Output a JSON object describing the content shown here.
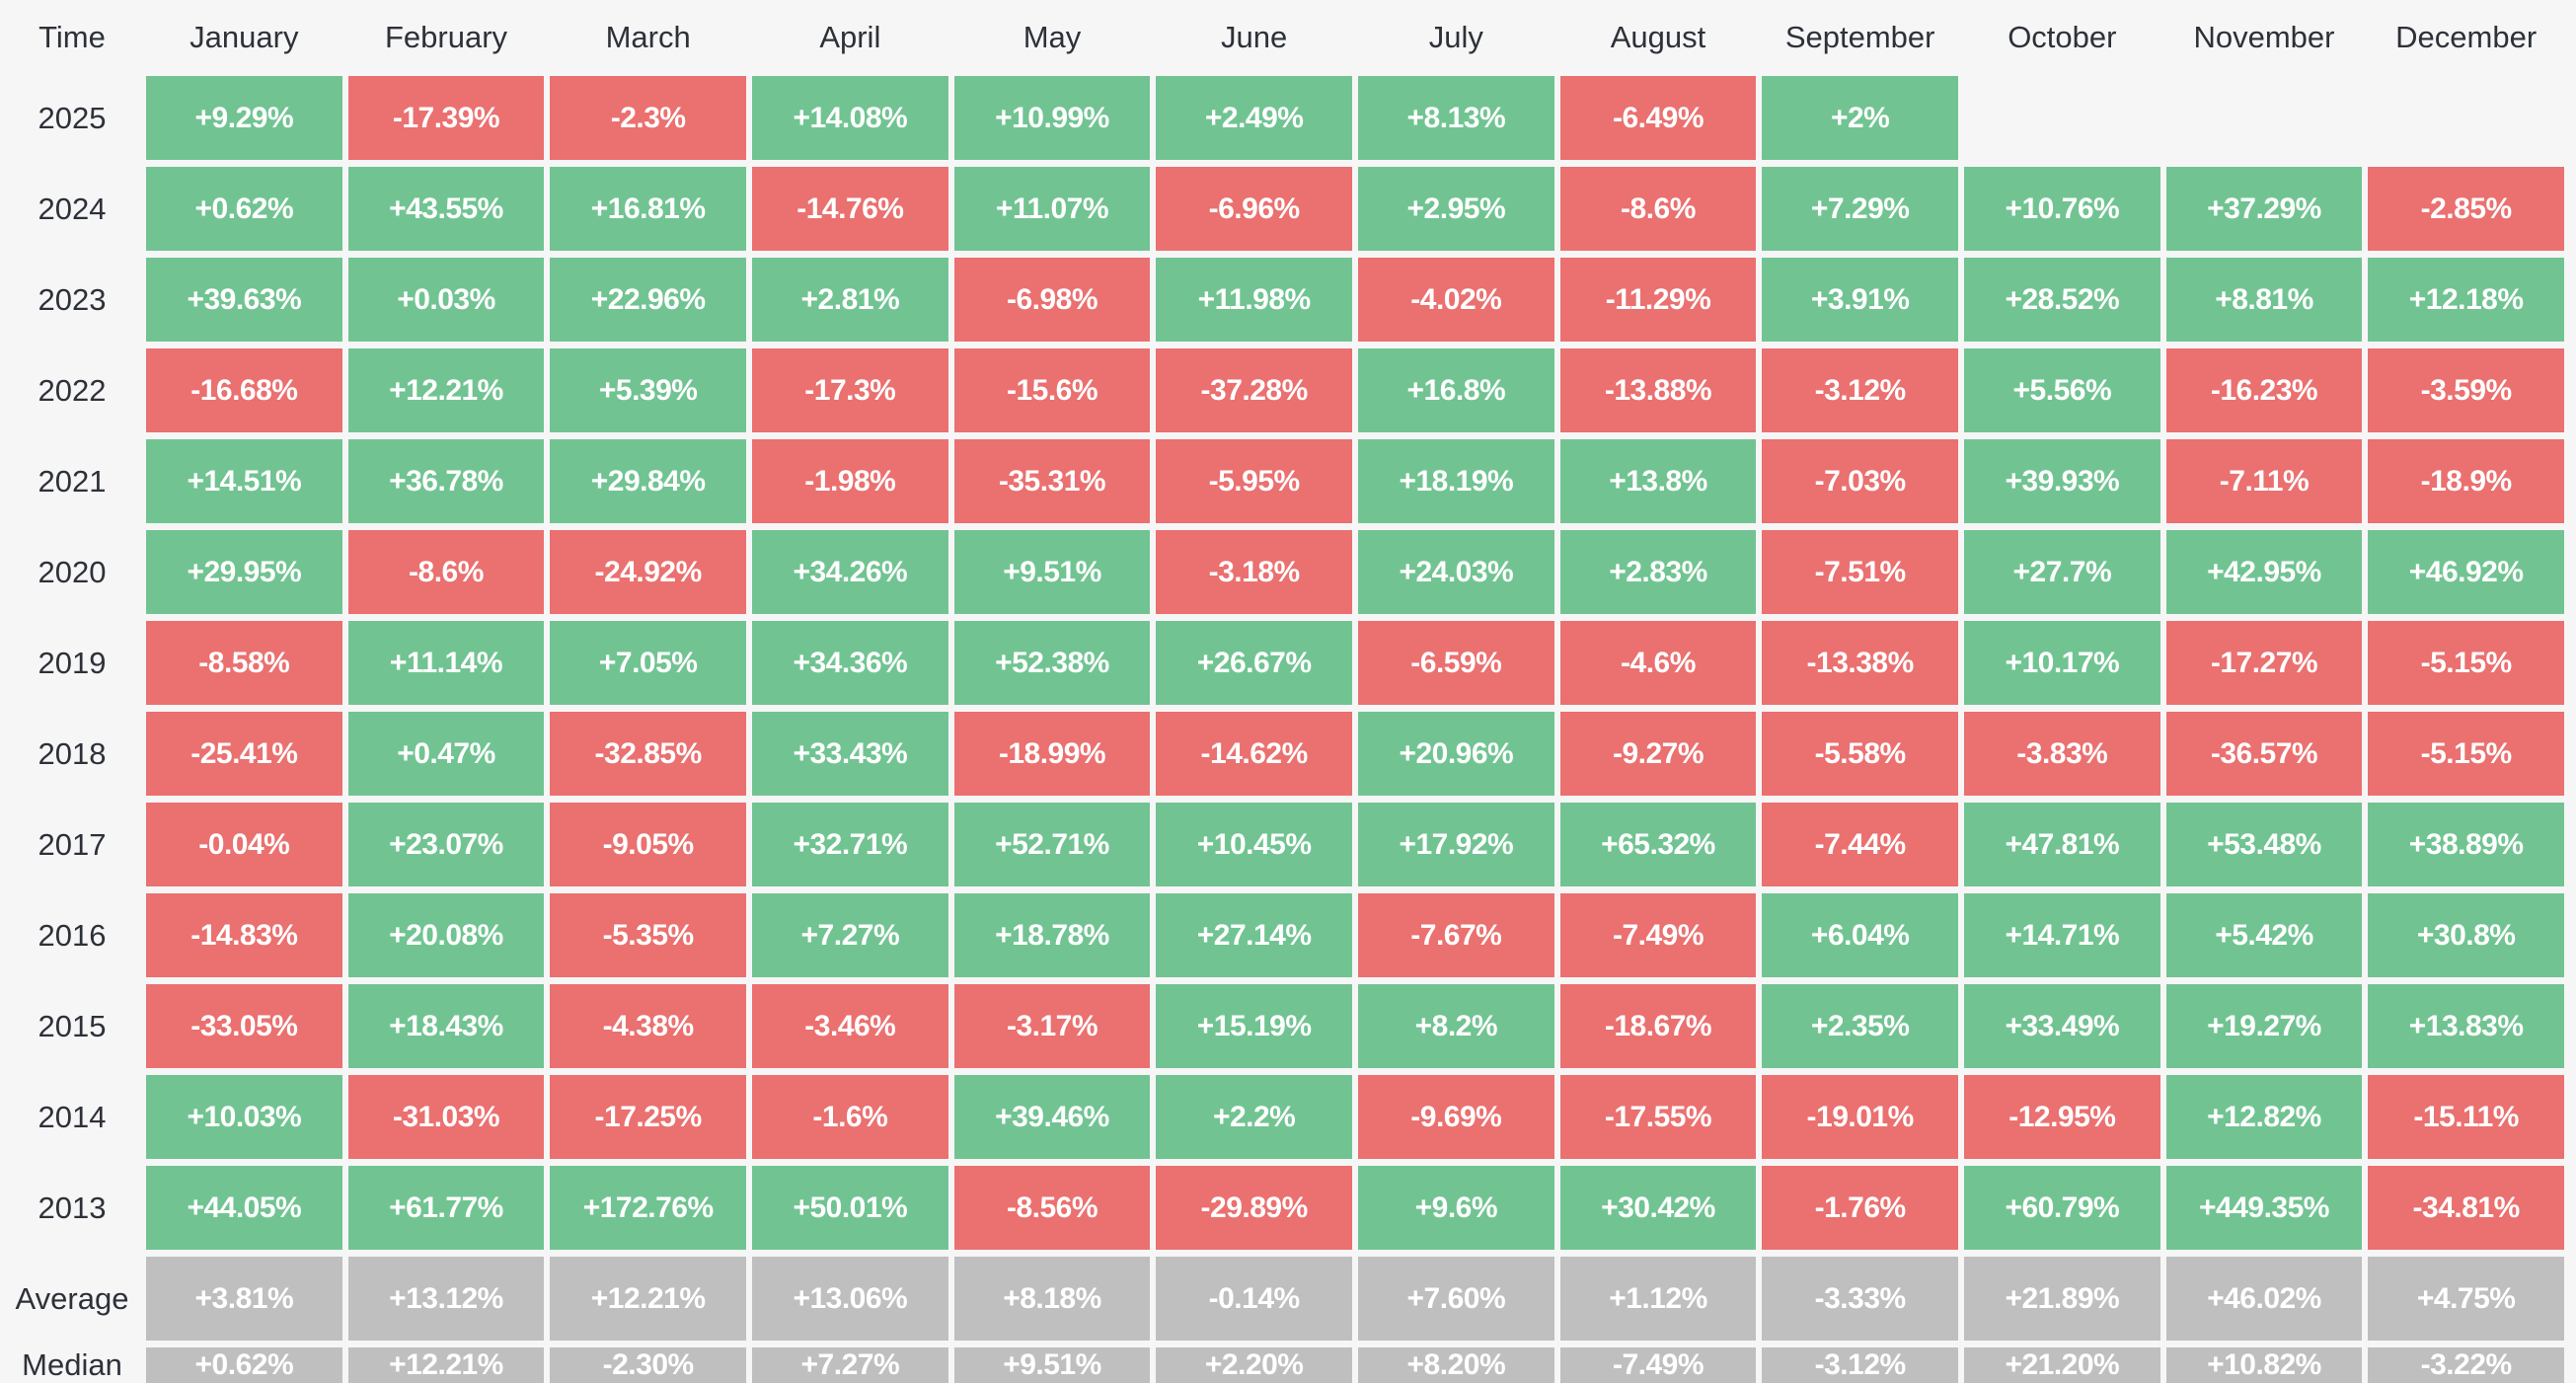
{
  "chart_data": {
    "type": "heatmap",
    "title": "Monthly returns (%) by year",
    "legend_position": "none",
    "columns": [
      "Time",
      "January",
      "February",
      "March",
      "April",
      "May",
      "June",
      "July",
      "August",
      "September",
      "October",
      "November",
      "December"
    ],
    "rows": [
      {
        "label": "2025",
        "kind": "year",
        "values": [
          "+9.29%",
          "-17.39%",
          "-2.3%",
          "+14.08%",
          "+10.99%",
          "+2.49%",
          "+8.13%",
          "-6.49%",
          "+2%",
          "",
          "",
          ""
        ]
      },
      {
        "label": "2024",
        "kind": "year",
        "values": [
          "+0.62%",
          "+43.55%",
          "+16.81%",
          "-14.76%",
          "+11.07%",
          "-6.96%",
          "+2.95%",
          "-8.6%",
          "+7.29%",
          "+10.76%",
          "+37.29%",
          "-2.85%"
        ]
      },
      {
        "label": "2023",
        "kind": "year",
        "values": [
          "+39.63%",
          "+0.03%",
          "+22.96%",
          "+2.81%",
          "-6.98%",
          "+11.98%",
          "-4.02%",
          "-11.29%",
          "+3.91%",
          "+28.52%",
          "+8.81%",
          "+12.18%"
        ]
      },
      {
        "label": "2022",
        "kind": "year",
        "values": [
          "-16.68%",
          "+12.21%",
          "+5.39%",
          "-17.3%",
          "-15.6%",
          "-37.28%",
          "+16.8%",
          "-13.88%",
          "-3.12%",
          "+5.56%",
          "-16.23%",
          "-3.59%"
        ]
      },
      {
        "label": "2021",
        "kind": "year",
        "values": [
          "+14.51%",
          "+36.78%",
          "+29.84%",
          "-1.98%",
          "-35.31%",
          "-5.95%",
          "+18.19%",
          "+13.8%",
          "-7.03%",
          "+39.93%",
          "-7.11%",
          "-18.9%"
        ]
      },
      {
        "label": "2020",
        "kind": "year",
        "values": [
          "+29.95%",
          "-8.6%",
          "-24.92%",
          "+34.26%",
          "+9.51%",
          "-3.18%",
          "+24.03%",
          "+2.83%",
          "-7.51%",
          "+27.7%",
          "+42.95%",
          "+46.92%"
        ]
      },
      {
        "label": "2019",
        "kind": "year",
        "values": [
          "-8.58%",
          "+11.14%",
          "+7.05%",
          "+34.36%",
          "+52.38%",
          "+26.67%",
          "-6.59%",
          "-4.6%",
          "-13.38%",
          "+10.17%",
          "-17.27%",
          "-5.15%"
        ]
      },
      {
        "label": "2018",
        "kind": "year",
        "values": [
          "-25.41%",
          "+0.47%",
          "-32.85%",
          "+33.43%",
          "-18.99%",
          "-14.62%",
          "+20.96%",
          "-9.27%",
          "-5.58%",
          "-3.83%",
          "-36.57%",
          "-5.15%"
        ]
      },
      {
        "label": "2017",
        "kind": "year",
        "values": [
          "-0.04%",
          "+23.07%",
          "-9.05%",
          "+32.71%",
          "+52.71%",
          "+10.45%",
          "+17.92%",
          "+65.32%",
          "-7.44%",
          "+47.81%",
          "+53.48%",
          "+38.89%"
        ]
      },
      {
        "label": "2016",
        "kind": "year",
        "values": [
          "-14.83%",
          "+20.08%",
          "-5.35%",
          "+7.27%",
          "+18.78%",
          "+27.14%",
          "-7.67%",
          "-7.49%",
          "+6.04%",
          "+14.71%",
          "+5.42%",
          "+30.8%"
        ]
      },
      {
        "label": "2015",
        "kind": "year",
        "values": [
          "-33.05%",
          "+18.43%",
          "-4.38%",
          "-3.46%",
          "-3.17%",
          "+15.19%",
          "+8.2%",
          "-18.67%",
          "+2.35%",
          "+33.49%",
          "+19.27%",
          "+13.83%"
        ]
      },
      {
        "label": "2014",
        "kind": "year",
        "values": [
          "+10.03%",
          "-31.03%",
          "-17.25%",
          "-1.6%",
          "+39.46%",
          "+2.2%",
          "-9.69%",
          "-17.55%",
          "-19.01%",
          "-12.95%",
          "+12.82%",
          "-15.11%"
        ]
      },
      {
        "label": "2013",
        "kind": "year",
        "values": [
          "+44.05%",
          "+61.77%",
          "+172.76%",
          "+50.01%",
          "-8.56%",
          "-29.89%",
          "+9.6%",
          "+30.42%",
          "-1.76%",
          "+60.79%",
          "+449.35%",
          "-34.81%"
        ]
      },
      {
        "label": "Average",
        "kind": "summary",
        "values": [
          "+3.81%",
          "+13.12%",
          "+12.21%",
          "+13.06%",
          "+8.18%",
          "-0.14%",
          "+7.60%",
          "+1.12%",
          "-3.33%",
          "+21.89%",
          "+46.02%",
          "+4.75%"
        ]
      },
      {
        "label": "Median",
        "kind": "summary",
        "values": [
          "+0.62%",
          "+12.21%",
          "-2.30%",
          "+7.27%",
          "+9.51%",
          "+2.20%",
          "+8.20%",
          "-7.49%",
          "-3.12%",
          "+21.20%",
          "+10.82%",
          "-3.22%"
        ]
      }
    ],
    "colors": {
      "positive": "#71c492",
      "negative": "#eb7070",
      "summary": "#bfbfbf",
      "background": "#f6f6f7",
      "label_text": "#2d3138",
      "cell_text": "#ffffff"
    }
  }
}
